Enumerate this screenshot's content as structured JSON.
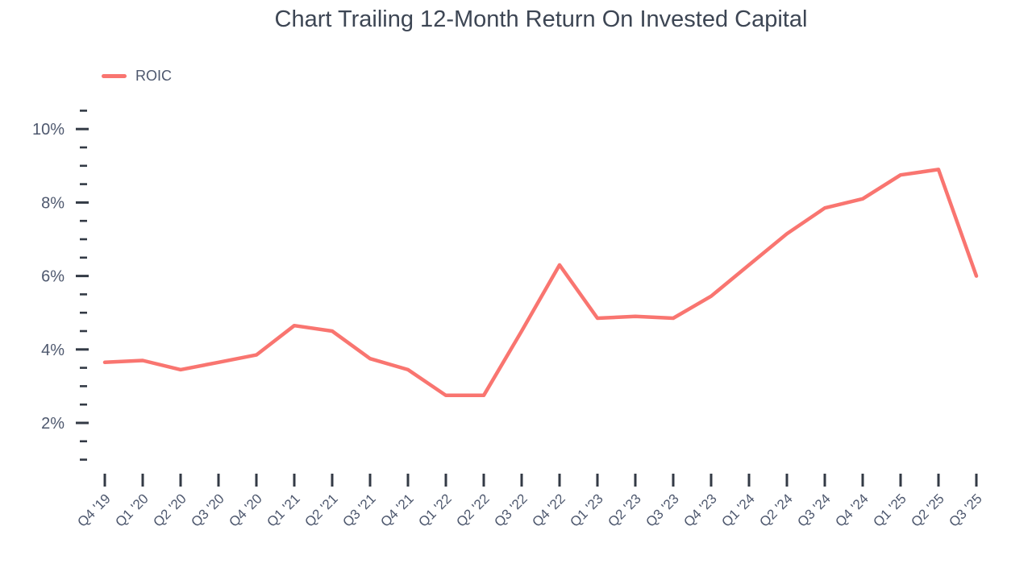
{
  "page": {
    "background": "#ffffff"
  },
  "header": {
    "title": "Chart Trailing 12-Month Return On Invested Capital"
  },
  "legend": {
    "items": [
      {
        "label": "ROIC",
        "color": "#f97570"
      }
    ]
  },
  "chart_data": {
    "type": "line",
    "title": "Chart Trailing 12-Month Return On Invested Capital",
    "xlabel": "",
    "ylabel": "",
    "grid": false,
    "legend_position": "top-left",
    "categories": [
      "Q4 '19",
      "Q1 '20",
      "Q2 '20",
      "Q3 '20",
      "Q4 '20",
      "Q1 '21",
      "Q2 '21",
      "Q3 '21",
      "Q4 '21",
      "Q1 '22",
      "Q2 '22",
      "Q3 '22",
      "Q4 '22",
      "Q1 '23",
      "Q2 '23",
      "Q3 '23",
      "Q4 '23",
      "Q1 '24",
      "Q2 '24",
      "Q3 '24",
      "Q4 '24",
      "Q1 '25",
      "Q2 '25",
      "Q3 '25"
    ],
    "series": [
      {
        "name": "ROIC",
        "color": "#f97570",
        "unit": "%",
        "values": [
          3.65,
          3.7,
          3.45,
          3.65,
          3.85,
          4.65,
          4.5,
          3.75,
          3.45,
          2.75,
          2.75,
          4.5,
          6.3,
          4.85,
          4.9,
          4.85,
          5.45,
          6.3,
          7.15,
          7.85,
          8.1,
          8.75,
          8.9,
          6.0
        ]
      }
    ],
    "y_axis": {
      "min": 1,
      "max": 10.5,
      "major_ticks": [
        2,
        4,
        6,
        8,
        10
      ],
      "major_tick_labels": [
        "2%",
        "4%",
        "6%",
        "8%",
        "10%"
      ],
      "minor_tick_step": 0.5,
      "unit": "%"
    },
    "colors": {
      "line": "#f97570",
      "tick_mark": "#333a45",
      "axis_label": "#4e586e",
      "title": "#3d4654"
    }
  }
}
